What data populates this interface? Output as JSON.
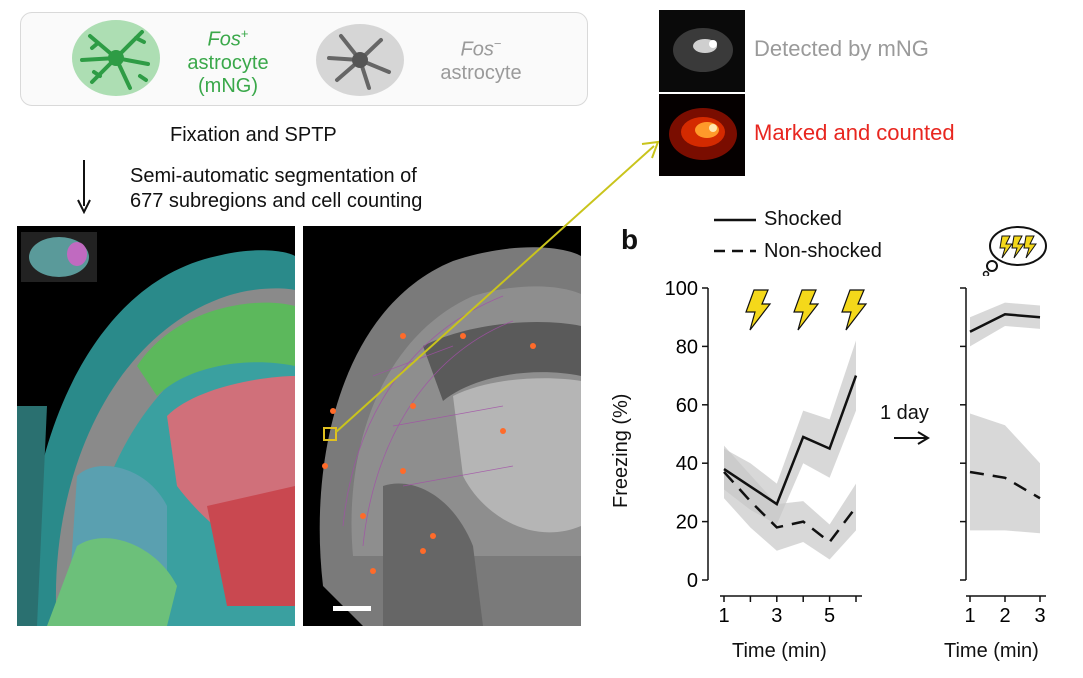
{
  "panel_a": {
    "legend": {
      "fos_pos_prefix": "Fos",
      "fos_pos_sup": "+",
      "fos_pos_line2": "astrocyte",
      "fos_pos_line3": "(mNG)",
      "fos_neg_prefix": "Fos",
      "fos_neg_sup": "−",
      "fos_neg_line2": "astrocyte"
    },
    "step1": "Fixation and SPTP",
    "step2_line1": "Semi-automatic segmentation of",
    "step2_line2": "677 subregions and cell counting",
    "detected_label": "Detected by mNG",
    "marked_label": "Marked and counted",
    "colors": {
      "green": "#3aa84a",
      "grey": "#9a9a9a",
      "red": "#e8261f",
      "arrow": "#c9c41c"
    }
  },
  "panel_b": {
    "letter": "b",
    "legend": {
      "shocked": "Shocked",
      "non_shocked": "Non-shocked"
    },
    "arrow_label": "1 day",
    "ylabel": "Freezing (%)",
    "xlabel": "Time (min)"
  },
  "chart_data": [
    {
      "type": "line",
      "ylabel": "Freezing (%)",
      "xlabel": "Time (min)",
      "ylim": [
        0,
        100
      ],
      "xlim": [
        1,
        6
      ],
      "yticks": [
        "0",
        "20",
        "40",
        "60",
        "80",
        "100"
      ],
      "xticks": [
        "1",
        "3",
        "5"
      ],
      "x": [
        1,
        2,
        3,
        4,
        5,
        6
      ],
      "series": [
        {
          "name": "Shocked",
          "values": [
            38,
            32,
            26,
            49,
            45,
            70
          ],
          "error": [
            7,
            8,
            7,
            9,
            10,
            12
          ]
        },
        {
          "name": "Non-shocked",
          "values": [
            37,
            27,
            18,
            20,
            13,
            25
          ],
          "error": [
            9,
            9,
            8,
            7,
            6,
            8
          ]
        }
      ]
    },
    {
      "type": "line",
      "ylabel": "",
      "xlabel": "Time (min)",
      "ylim": [
        0,
        100
      ],
      "xlim": [
        1,
        3
      ],
      "yticks": [
        "",
        "",
        "",
        "",
        "",
        ""
      ],
      "xticks": [
        "1",
        "2",
        "3"
      ],
      "x": [
        1,
        2,
        3
      ],
      "series": [
        {
          "name": "Shocked",
          "values": [
            85,
            91,
            90
          ],
          "error": [
            5,
            4,
            4
          ]
        },
        {
          "name": "Non-shocked",
          "values": [
            37,
            35,
            28
          ],
          "error": [
            20,
            18,
            12
          ]
        }
      ]
    }
  ]
}
